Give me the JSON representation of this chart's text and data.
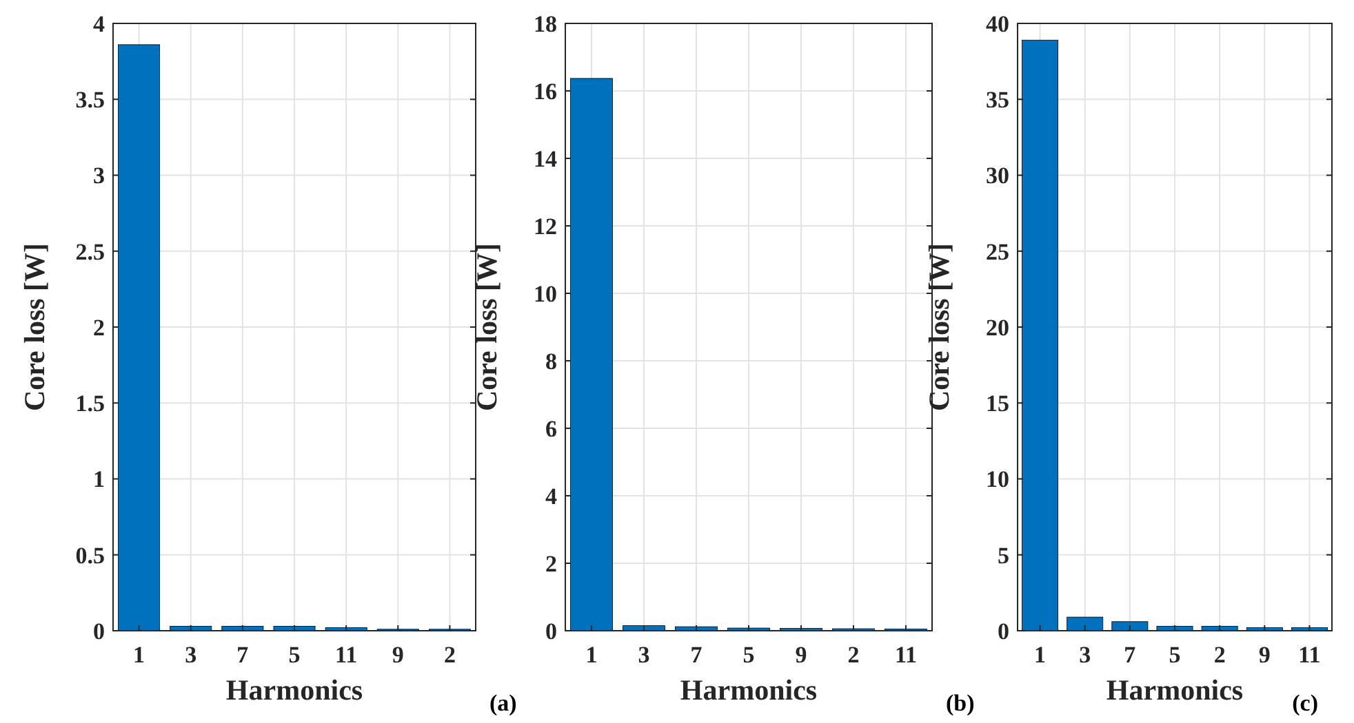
{
  "chart_data": [
    {
      "type": "bar",
      "xlabel": "Harmonics",
      "ylabel": "Core loss [W]",
      "annotations": [
        "(a)"
      ],
      "categories": [
        "1",
        "3",
        "7",
        "5",
        "11",
        "9",
        "2"
      ],
      "values": [
        3.86,
        0.03,
        0.03,
        0.03,
        0.02,
        0.01,
        0.01
      ],
      "color": "#0072bd",
      "ylim": [
        0,
        4
      ],
      "yticks": [
        0,
        0.5,
        1,
        1.5,
        2,
        2.5,
        3,
        3.5,
        4
      ],
      "grid": true
    },
    {
      "type": "bar",
      "xlabel": "Harmonics",
      "ylabel": "Core loss [W]",
      "annotations": [
        "(b)"
      ],
      "categories": [
        "1",
        "3",
        "7",
        "5",
        "9",
        "2",
        "11"
      ],
      "values": [
        16.37,
        0.15,
        0.12,
        0.08,
        0.07,
        0.06,
        0.05
      ],
      "color": "#0072bd",
      "ylim": [
        0,
        18
      ],
      "yticks": [
        0,
        2,
        4,
        6,
        8,
        10,
        12,
        14,
        16,
        18
      ],
      "grid": true
    },
    {
      "type": "bar",
      "xlabel": "Harmonics",
      "ylabel": "Core loss [W]",
      "annotations": [
        "(c)"
      ],
      "categories": [
        "1",
        "3",
        "7",
        "5",
        "2",
        "9",
        "11"
      ],
      "values": [
        38.9,
        0.9,
        0.6,
        0.3,
        0.3,
        0.2,
        0.2
      ],
      "color": "#0072bd",
      "ylim": [
        0,
        40
      ],
      "yticks": [
        0,
        5,
        10,
        15,
        20,
        25,
        30,
        35,
        40
      ],
      "grid": true
    }
  ]
}
